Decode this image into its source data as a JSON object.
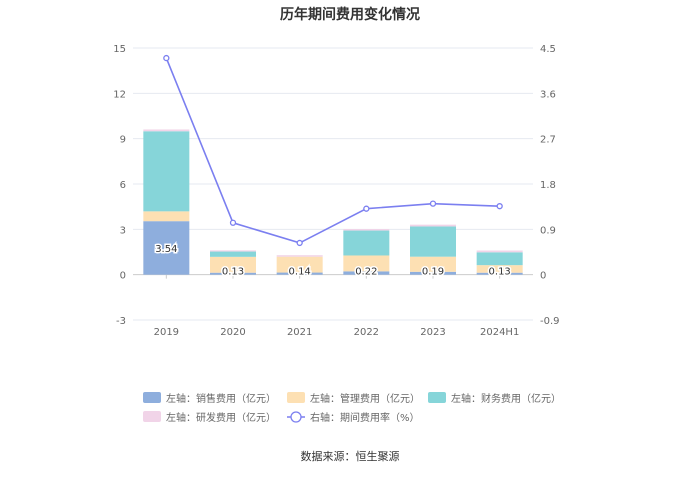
{
  "chart_data": {
    "type": "bar",
    "title": "历年期间费用变化情况",
    "categories": [
      "2019",
      "2020",
      "2021",
      "2022",
      "2023",
      "2024H1"
    ],
    "y_left": {
      "ylim": [
        -3,
        15
      ],
      "ticks": [
        "-3",
        "0",
        "3",
        "6",
        "9",
        "12",
        "15"
      ]
    },
    "y_right": {
      "ylim": [
        -0.9,
        4.5
      ],
      "ticks": [
        "-0.9",
        "0",
        "0.9",
        "1.8",
        "2.7",
        "3.6",
        "4.5"
      ]
    },
    "grid": true,
    "legend_position": "bottom",
    "series": [
      {
        "name": "左轴：销售费用（亿元）",
        "type": "bar",
        "axis": "left",
        "color": "#8eaedd",
        "values": [
          3.54,
          0.13,
          0.14,
          0.22,
          0.19,
          0.13
        ],
        "labels": [
          "3.54",
          "0.13",
          "0.14",
          "0.22",
          "0.19",
          "0.13"
        ]
      },
      {
        "name": "左轴：管理费用（亿元）",
        "type": "bar",
        "axis": "left",
        "color": "#fde0b3",
        "values": [
          0.65,
          1.05,
          1.05,
          1.05,
          1.0,
          0.5
        ],
        "labels": []
      },
      {
        "name": "左轴：财务费用（亿元）",
        "type": "bar",
        "axis": "left",
        "color": "#86d5d9",
        "values": [
          5.3,
          0.35,
          0.0,
          1.65,
          2.0,
          0.85
        ],
        "labels": []
      },
      {
        "name": "左轴：研发费用（亿元）",
        "type": "bar",
        "axis": "left",
        "color": "#f1d4e8",
        "values": [
          0.12,
          0.08,
          0.1,
          0.1,
          0.12,
          0.12
        ],
        "labels": []
      },
      {
        "name": "右轴：期间费用率（%）",
        "type": "line",
        "axis": "right",
        "color": "#7b7ff0",
        "values": [
          4.3,
          1.03,
          0.63,
          1.31,
          1.41,
          1.36
        ]
      }
    ]
  },
  "source": "数据来源：恒生聚源"
}
